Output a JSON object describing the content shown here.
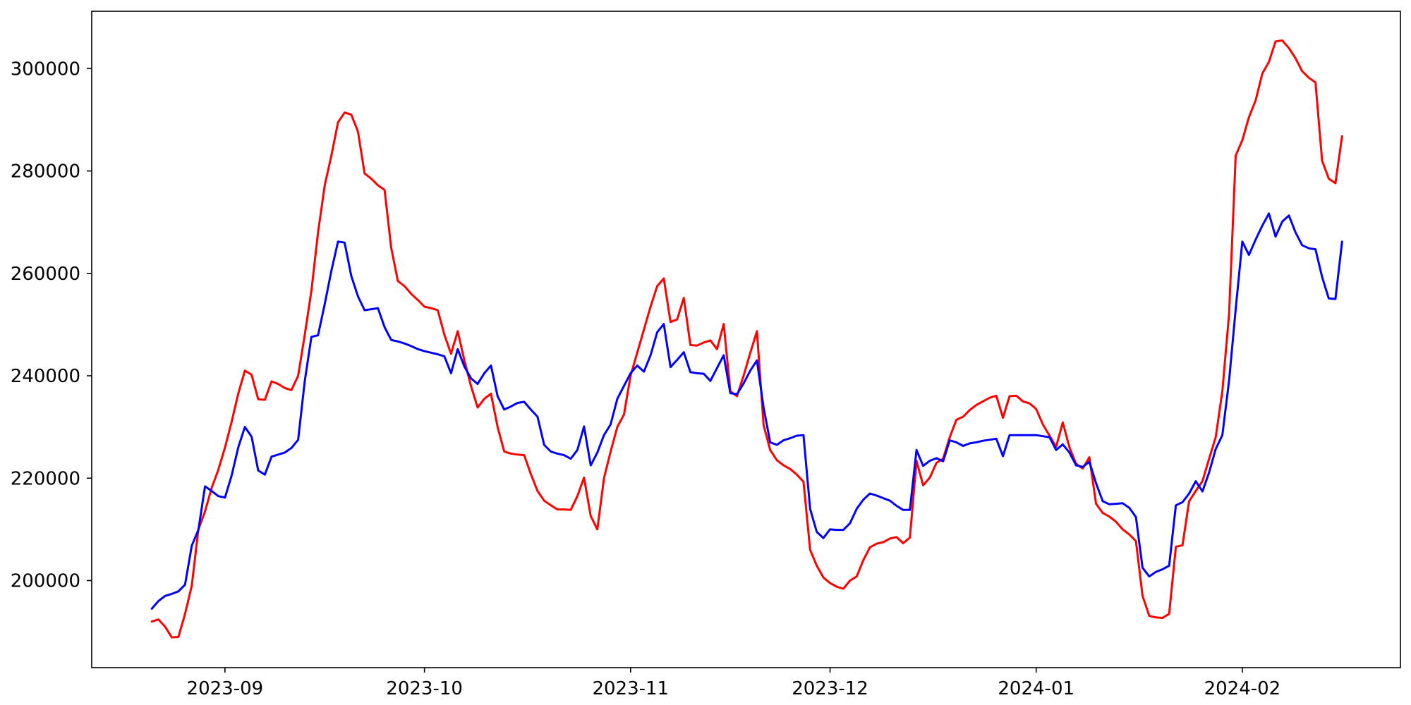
{
  "figure": {
    "background": "#ffffff",
    "plot_background": "#ffffff",
    "spine_color": "#000000"
  },
  "chart_data": {
    "type": "line",
    "title": "",
    "xlabel": "",
    "ylabel": "",
    "grid": false,
    "legend": false,
    "x_unit": "day",
    "x_start_date": "2023-08-21",
    "x_end_date": "2024-02-16",
    "x_axis": {
      "tick_labels": [
        "2023-09",
        "2023-10",
        "2023-11",
        "2023-12",
        "2024-01",
        "2024-02"
      ],
      "tick_day_indices": [
        11,
        41,
        72,
        102,
        133,
        164
      ]
    },
    "y_axis": {
      "tick_values": [
        200000,
        220000,
        240000,
        260000,
        280000,
        300000
      ],
      "ylim": [
        182900,
        311300
      ]
    },
    "series": [
      {
        "name": "red",
        "color": "#ff0000",
        "values": [
          192000,
          192400,
          191000,
          188900,
          189000,
          193500,
          199000,
          210000,
          213500,
          218100,
          221600,
          226000,
          231000,
          236500,
          241000,
          240200,
          235400,
          235300,
          238900,
          238400,
          237600,
          237200,
          240000,
          248000,
          256600,
          268000,
          277200,
          283000,
          289500,
          291400,
          291000,
          287700,
          279500,
          278500,
          277200,
          276300,
          265000,
          258500,
          257500,
          256000,
          254800,
          253500,
          253200,
          252800,
          248000,
          244300,
          248700,
          243000,
          238000,
          233800,
          235500,
          236500,
          230000,
          225200,
          224800,
          224600,
          224500,
          220800,
          217500,
          215600,
          214700,
          213900,
          213900,
          213800,
          216500,
          220100,
          212600,
          210000,
          220000,
          225200,
          230000,
          232400,
          240000,
          244500,
          249000,
          253500,
          257500,
          259000,
          250500,
          251000,
          255200,
          246000,
          245900,
          246500,
          246900,
          245200,
          250100,
          237000,
          236000,
          240000,
          244500,
          248700,
          230400,
          225500,
          223500,
          222500,
          221800,
          220700,
          219300,
          206000,
          202900,
          200600,
          199500,
          198800,
          198400,
          200000,
          200800,
          204000,
          206500,
          207200,
          207500,
          208200,
          208500,
          207300,
          208400,
          223400,
          218600,
          220100,
          223000,
          223800,
          228000,
          231400,
          232000,
          233300,
          234300,
          235000,
          235700,
          236100,
          231800,
          236000,
          236100,
          235000,
          234600,
          233500,
          230500,
          228300,
          226100,
          230900,
          226000,
          222800,
          221900,
          224100,
          215000,
          213200,
          212500,
          211500,
          210000,
          209000,
          207700,
          197000,
          193100,
          192800,
          192700,
          193500,
          206600,
          206900,
          215500,
          217500,
          219400,
          223800,
          228000,
          237000,
          252000,
          283000,
          286000,
          290500,
          293800,
          299000,
          301300,
          305300,
          305500,
          304000,
          302000,
          299500,
          298200,
          297300,
          282000,
          278500,
          277600,
          286800
        ]
      },
      {
        "name": "blue",
        "color": "#0000ff",
        "values": [
          194500,
          196000,
          197000,
          197400,
          197900,
          199200,
          206800,
          209900,
          218400,
          217500,
          216500,
          216200,
          220500,
          226000,
          230000,
          228100,
          221500,
          220700,
          224200,
          224600,
          225000,
          225900,
          227500,
          239000,
          247600,
          247900,
          254000,
          260500,
          266200,
          266000,
          259500,
          255500,
          252800,
          253000,
          253200,
          249500,
          247000,
          246700,
          246300,
          245800,
          245200,
          244800,
          244500,
          244200,
          243800,
          240500,
          245200,
          241800,
          239500,
          238400,
          240500,
          242000,
          236000,
          233400,
          234000,
          234700,
          234900,
          233400,
          232000,
          226500,
          225200,
          224800,
          224500,
          223800,
          225500,
          230100,
          222500,
          225000,
          228400,
          230500,
          235500,
          238000,
          240500,
          242000,
          240800,
          244000,
          248500,
          250100,
          241700,
          243100,
          244600,
          240700,
          240500,
          240400,
          239000,
          241500,
          244000,
          236600,
          236400,
          238500,
          241000,
          243000,
          233800,
          227000,
          226500,
          227400,
          227800,
          228300,
          228400,
          214000,
          209500,
          208300,
          210000,
          209900,
          209900,
          211200,
          214000,
          215800,
          217000,
          216600,
          216100,
          215600,
          214600,
          213800,
          213800,
          225500,
          222400,
          223400,
          223900,
          223300,
          227400,
          227000,
          226300,
          226800,
          227000,
          227300,
          227500,
          227700,
          224300,
          228400,
          228400,
          228400,
          228400,
          228400,
          228200,
          228000,
          225500,
          226600,
          225000,
          222500,
          222200,
          223200,
          219000,
          215500,
          214900,
          215000,
          215100,
          214200,
          212400,
          202500,
          200800,
          201700,
          202200,
          202900,
          214700,
          215300,
          217000,
          219400,
          217400,
          221100,
          225700,
          228400,
          239000,
          253000,
          266200,
          263600,
          266600,
          269300,
          271700,
          267200,
          270100,
          271300,
          268000,
          265500,
          264900,
          264700,
          259300,
          255100,
          255000,
          266200
        ]
      }
    ]
  }
}
